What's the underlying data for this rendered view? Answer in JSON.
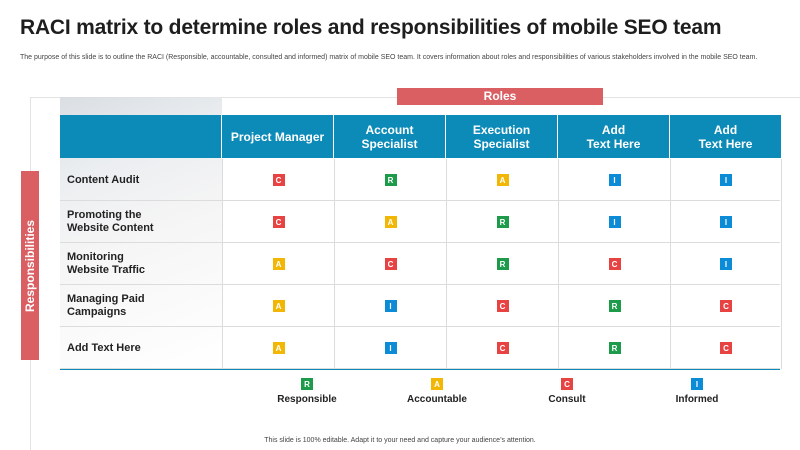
{
  "title": "RACI matrix to determine roles and responsibilities of mobile SEO team",
  "description": "The purpose of this slide is to outline the RACI (Responsible, accountable, consulted and informed) matrix of mobile SEO team. It covers information about roles and responsibilities of various stakeholders involved in the mobile SEO team.",
  "roles_label": "Roles",
  "responsibilities_label": "Responsibilities",
  "columns": [
    "Project Manager",
    "Account\nSpecialist",
    "Execution\nSpecialist",
    "Add\nText Here",
    "Add\nText Here"
  ],
  "rows": [
    {
      "label": "Content Audit",
      "cells": [
        "C",
        "R",
        "A",
        "I",
        "I"
      ]
    },
    {
      "label": "Promoting the\nWebsite Content",
      "cells": [
        "C",
        "A",
        "R",
        "I",
        "I"
      ]
    },
    {
      "label": "Monitoring\nWebsite Traffic",
      "cells": [
        "A",
        "C",
        "R",
        "C",
        "I"
      ]
    },
    {
      "label": "Managing Paid\nCampaigns",
      "cells": [
        "A",
        "I",
        "C",
        "R",
        "C"
      ]
    },
    {
      "label": "Add Text Here",
      "cells": [
        "A",
        "I",
        "C",
        "R",
        "C"
      ]
    }
  ],
  "legend": [
    {
      "letter": "R",
      "label": "Responsible"
    },
    {
      "letter": "A",
      "label": "Accountable"
    },
    {
      "letter": "C",
      "label": "Consult"
    },
    {
      "letter": "I",
      "label": "Informed"
    }
  ],
  "colors": {
    "R": "#1e9a4b",
    "A": "#f2b705",
    "C": "#e84343",
    "I": "#0c8bd6",
    "header": "#0c8bb8",
    "banner": "#d95f63"
  },
  "footer": "This slide is 100% editable. Adapt it to your need and capture your audience’s attention."
}
